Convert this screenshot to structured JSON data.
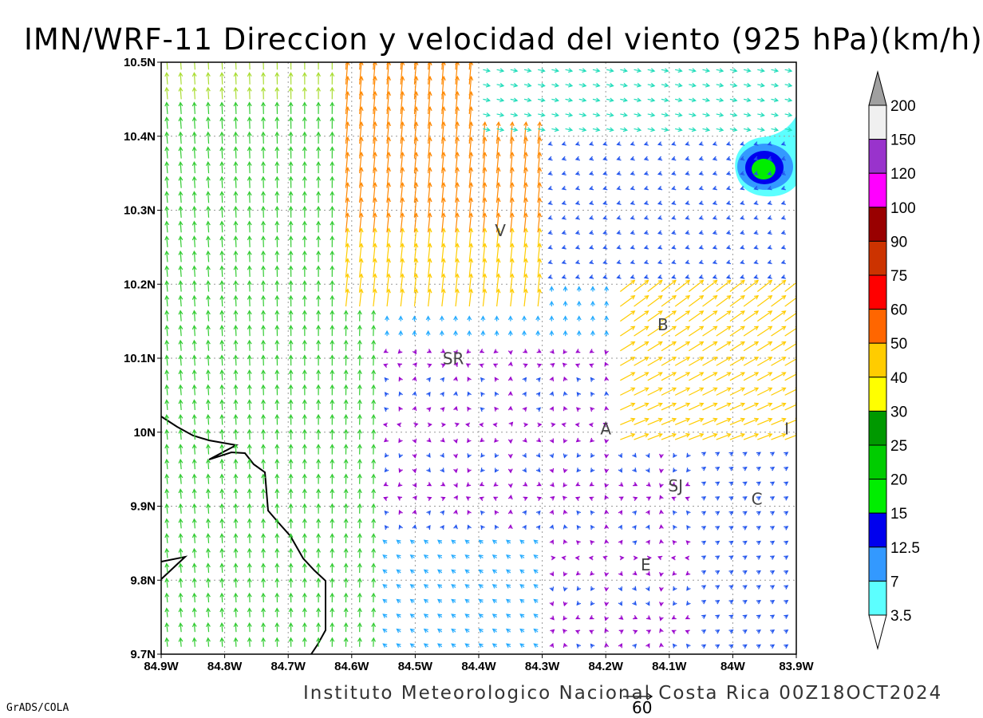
{
  "title": "IMN/WRF-11 Direccion y velocidad del viento (925 hPa)(km/h)",
  "footer": "Instituto Meteorologico Nacional Costa Rica 00Z18OCT2024",
  "credit": "GrADS/COLA",
  "reference_vector": {
    "label": "60",
    "speed": 60
  },
  "axes": {
    "x_ticks": [
      "84.9W",
      "84.8W",
      "84.7W",
      "84.6W",
      "84.5W",
      "84.4W",
      "84.3W",
      "84.2W",
      "84.1W",
      "84W",
      "83.9W"
    ],
    "y_ticks": [
      "9.7N",
      "9.8N",
      "9.9N",
      "10N",
      "10.1N",
      "10.2N",
      "10.3N",
      "10.4N",
      "10.5N"
    ],
    "lon_range": [
      -84.9,
      -83.9
    ],
    "lat_range": [
      9.7,
      10.5
    ]
  },
  "places": [
    {
      "label": "V",
      "lon": -84.366,
      "lat": 10.265
    },
    {
      "label": "B",
      "lon": -84.11,
      "lat": 10.138
    },
    {
      "label": "SR",
      "lon": -84.44,
      "lat": 10.092
    },
    {
      "label": "A",
      "lon": -84.2,
      "lat": 9.997
    },
    {
      "label": "I",
      "lon": -83.915,
      "lat": 9.997
    },
    {
      "label": "SJ",
      "lon": -84.09,
      "lat": 9.92
    },
    {
      "label": "C",
      "lon": -83.962,
      "lat": 9.902
    },
    {
      "label": "E",
      "lon": -84.137,
      "lat": 9.813
    }
  ],
  "colorbar": {
    "labels": [
      "3.5",
      "7",
      "12.5",
      "15",
      "20",
      "25",
      "30",
      "40",
      "50",
      "60",
      "75",
      "90",
      "100",
      "120",
      "150",
      "200"
    ],
    "colors": [
      "#5cffff",
      "#3399ff",
      "#0000ee",
      "#00ee00",
      "#00cc00",
      "#009900",
      "#ffff00",
      "#ffcc00",
      "#ff6600",
      "#ff0000",
      "#cc3300",
      "#990000",
      "#ff00ff",
      "#9933cc",
      "#f0f0f0"
    ],
    "over_color": "#a0a0a0",
    "under_color": "#ffffff"
  },
  "arrow_colors": {
    "calm": "#9900cc",
    "light": "#2255ee",
    "weak": "#22aaff",
    "moderate": "#22ddbb",
    "fresh": "#33cc33",
    "strong": "#aadd33",
    "stronger": "#ffcc00",
    "gale": "#ff8800",
    "storm": "#ee2222",
    "extreme": "#ff00aa"
  },
  "contour_colors": {
    "outer": "#5cffff",
    "mid": "#3399ff",
    "inner": "#0000ee",
    "core": "#00ee00"
  },
  "coastline_color": "#000000"
}
